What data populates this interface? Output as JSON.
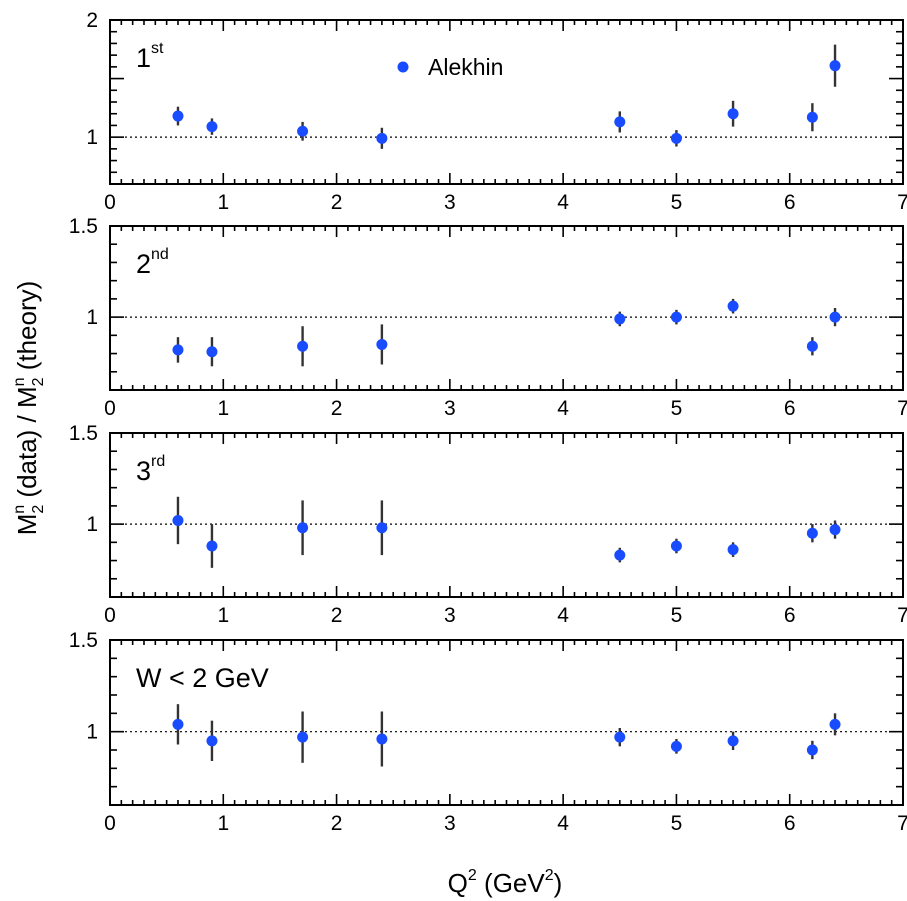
{
  "chart_data": {
    "type": "scatter",
    "xlabel": {
      "base": "Q",
      "sup": "2",
      "mid": " (GeV",
      "sup2": "2",
      "end": ")"
    },
    "ylabel": {
      "p1": "M",
      "sub1": "2",
      "sup1": "n",
      "p2": " (data) / M",
      "sub2": "2",
      "sup2": "n",
      "p3": " (theory)"
    },
    "legend": {
      "label": "Alekhin",
      "position": "top-center"
    },
    "xlim": [
      0,
      7
    ],
    "xticks": [
      "0",
      "1",
      "2",
      "3",
      "4",
      "5",
      "6",
      "7"
    ],
    "x": [
      0.6,
      0.9,
      1.7,
      2.4,
      4.5,
      5.0,
      5.5,
      6.2,
      6.4
    ],
    "panels": [
      {
        "label": "1",
        "label_sup": "st",
        "ylim": [
          0.6,
          2.0
        ],
        "yticks": [
          {
            "v": 1,
            "t": "1"
          },
          {
            "v": 2,
            "t": "2"
          }
        ],
        "y": [
          1.18,
          1.09,
          1.05,
          0.99,
          1.13,
          0.99,
          1.2,
          1.17,
          1.61
        ],
        "err": [
          0.08,
          0.07,
          0.08,
          0.09,
          0.09,
          0.07,
          0.11,
          0.12,
          0.18
        ]
      },
      {
        "label": "2",
        "label_sup": "nd",
        "ylim": [
          0.6,
          1.5
        ],
        "yticks": [
          {
            "v": 1,
            "t": "1"
          },
          {
            "v": 1.5,
            "t": "1.5"
          }
        ],
        "y": [
          0.82,
          0.81,
          0.84,
          0.85,
          0.99,
          1.0,
          1.06,
          0.84,
          1.0
        ],
        "err": [
          0.07,
          0.08,
          0.11,
          0.11,
          0.04,
          0.04,
          0.04,
          0.05,
          0.05
        ]
      },
      {
        "label": "3",
        "label_sup": "rd",
        "ylim": [
          0.6,
          1.5
        ],
        "yticks": [
          {
            "v": 1,
            "t": "1"
          },
          {
            "v": 1.5,
            "t": "1.5"
          }
        ],
        "y": [
          1.02,
          0.88,
          0.98,
          0.98,
          0.83,
          0.88,
          0.86,
          0.95,
          0.97
        ],
        "err": [
          0.13,
          0.12,
          0.15,
          0.15,
          0.04,
          0.04,
          0.04,
          0.05,
          0.05
        ]
      },
      {
        "label": "W < 2 GeV",
        "label_sup": "",
        "ylim": [
          0.6,
          1.5
        ],
        "yticks": [
          {
            "v": 1,
            "t": "1"
          },
          {
            "v": 1.5,
            "t": "1.5"
          }
        ],
        "y": [
          1.04,
          0.95,
          0.97,
          0.96,
          0.97,
          0.92,
          0.95,
          0.9,
          1.04
        ],
        "err": [
          0.11,
          0.11,
          0.14,
          0.15,
          0.05,
          0.04,
          0.05,
          0.05,
          0.06
        ]
      }
    ],
    "reference_line": 1,
    "marker_color": "#1a4cff",
    "errorbar_color": "#333333"
  }
}
